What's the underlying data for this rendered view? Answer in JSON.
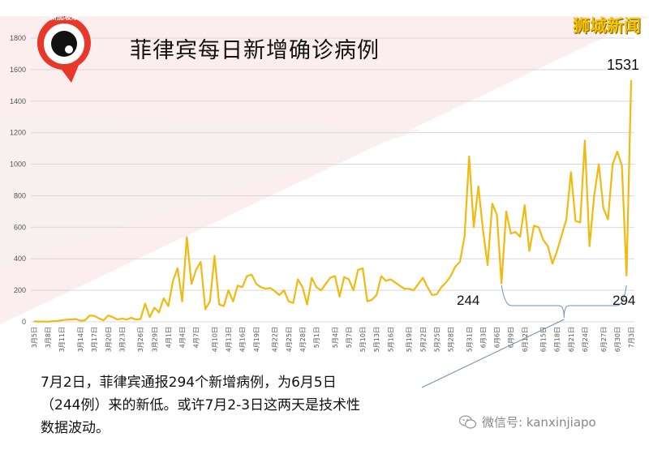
{
  "header": {
    "title": "菲律宾每日新增确诊病例",
    "brand": "狮城新闻",
    "logo_text": "新加坡眼"
  },
  "annotations": {
    "peak": "1531",
    "low_a": "244",
    "low_b": "294"
  },
  "caption": {
    "line1": "7月2日，菲律宾通报294个新增病例，为6月5日",
    "line2": "（244例）来的新低。或许7月2-3日这两天是技术性",
    "line3": "数据波动。"
  },
  "watermark": {
    "text": "微信号: kanxinjiapo",
    "icon": "wechat-icon"
  },
  "colors": {
    "line": "#f2b90f",
    "grid": "#d9d9d9",
    "bg_tri": "#f9e2e2"
  },
  "chart_data": {
    "type": "line",
    "title": "菲律宾每日新增确诊病例",
    "ylim": [
      0,
      1800
    ],
    "yticks": [
      "0",
      "200",
      "400",
      "600",
      "800",
      "1000",
      "1200",
      "1400",
      "1600",
      "1800"
    ],
    "grid": "horizontal",
    "x_tick_labels": [
      "3月5日",
      "3月8日",
      "3月11日",
      "3月14日",
      "3月17日",
      "3月20日",
      "3月23日",
      "3月26日",
      "3月29日",
      "4月1日",
      "4月4日",
      "4月7日",
      "4月10日",
      "4月13日",
      "4月16日",
      "4月19日",
      "4月22日",
      "4月25日",
      "4月28日",
      "5月1日",
      "5月4日",
      "5月7日",
      "5月10日",
      "5月13日",
      "5月16日",
      "5月19日",
      "5月22日",
      "5月25日",
      "5月28日",
      "5月31日",
      "6月3日",
      "6月6日",
      "6月9日",
      "6月12日",
      "6月15日",
      "6月18日",
      "6月21日",
      "6月24日",
      "6月27日",
      "6月30日",
      "7月3日"
    ],
    "values": [
      3,
      2,
      2,
      1,
      4,
      5,
      10,
      14,
      15,
      18,
      7,
      10,
      40,
      38,
      22,
      10,
      40,
      30,
      15,
      20,
      15,
      25,
      15,
      18,
      115,
      30,
      90,
      60,
      150,
      100,
      260,
      340,
      130,
      538,
      240,
      330,
      380,
      80,
      130,
      418,
      110,
      100,
      200,
      130,
      230,
      220,
      290,
      300,
      240,
      220,
      210,
      215,
      195,
      170,
      200,
      130,
      120,
      270,
      220,
      110,
      280,
      220,
      200,
      240,
      280,
      290,
      160,
      285,
      270,
      200,
      330,
      340,
      130,
      140,
      170,
      290,
      260,
      270,
      250,
      230,
      210,
      210,
      200,
      240,
      280,
      220,
      170,
      175,
      220,
      250,
      290,
      350,
      380,
      540,
      1050,
      600,
      860,
      580,
      360,
      750,
      680,
      244,
      700,
      560,
      570,
      540,
      740,
      450,
      610,
      600,
      520,
      480,
      370,
      450,
      550,
      650,
      950,
      640,
      630,
      1150,
      480,
      800,
      1000,
      720,
      650,
      1000,
      1080,
      990,
      294,
      1531
    ]
  }
}
